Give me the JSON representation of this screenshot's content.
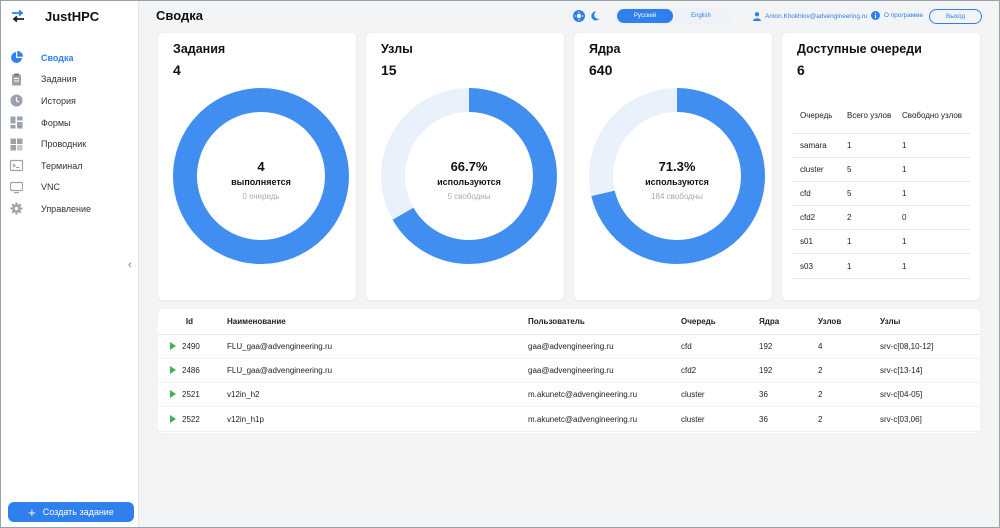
{
  "app": {
    "title": "JustHPC"
  },
  "sidebar": {
    "items": [
      {
        "label": "Сводка",
        "icon": "pie-chart-icon",
        "active": true
      },
      {
        "label": "Задания",
        "icon": "clipboard-icon"
      },
      {
        "label": "История",
        "icon": "history-icon"
      },
      {
        "label": "Формы",
        "icon": "forms-icon"
      },
      {
        "label": "Проводник",
        "icon": "explorer-icon"
      },
      {
        "label": "Терминал",
        "icon": "terminal-icon"
      },
      {
        "label": "VNC",
        "icon": "monitor-icon"
      },
      {
        "label": "Управление",
        "icon": "gear-icon"
      }
    ],
    "create_label": "Создать задание"
  },
  "header": {
    "title": "Сводка",
    "lang_ru": "Русский",
    "lang_en": "English",
    "user": "Anton.Khokhlov@advengineering.ru",
    "about": "О программе",
    "logout": "Выход"
  },
  "cards": {
    "jobs": {
      "title": "Задания",
      "count": "4",
      "center_value": "4",
      "center_label": "выполняется",
      "center_sub": "0 очередь",
      "fraction": 1.0
    },
    "nodes": {
      "title": "Узлы",
      "count": "15",
      "center_value": "66.7%",
      "center_label": "используются",
      "center_sub": "5 свободны",
      "fraction": 0.667
    },
    "cores": {
      "title": "Ядра",
      "count": "640",
      "center_value": "71.3%",
      "center_label": "используются",
      "center_sub": "184 свободны",
      "fraction": 0.713
    },
    "queues": {
      "title": "Доступные очереди",
      "count": "6",
      "headers": [
        "Очередь",
        "Всего узлов",
        "Свободно узлов"
      ],
      "rows": [
        [
          "samara",
          "1",
          "1"
        ],
        [
          "cluster",
          "5",
          "1"
        ],
        [
          "cfd",
          "5",
          "1"
        ],
        [
          "cfd2",
          "2",
          "0"
        ],
        [
          "s01",
          "1",
          "1"
        ],
        [
          "s03",
          "1",
          "1"
        ]
      ]
    }
  },
  "tasks": {
    "headers": [
      "Id",
      "Наименование",
      "Пользователь",
      "Очередь",
      "Ядра",
      "Узлов",
      "Узлы"
    ],
    "rows": [
      [
        "2490",
        "FLU_gaa@advengineering.ru",
        "gaa@advengineering.ru",
        "cfd",
        "192",
        "4",
        "srv-c[08,10-12]"
      ],
      [
        "2486",
        "FLU_gaa@advengineering.ru",
        "gaa@advengineering.ru",
        "cfd2",
        "192",
        "2",
        "srv-c[13-14]"
      ],
      [
        "2521",
        "v12in_h2",
        "m.akunetc@advengineering.ru",
        "cluster",
        "36",
        "2",
        "srv-c[04-05]"
      ],
      [
        "2522",
        "v12in_h1p",
        "m.akunetc@advengineering.ru",
        "cluster",
        "36",
        "2",
        "srv-c[03,06]"
      ]
    ]
  },
  "colors": {
    "accent": "#2f80ed",
    "track": "#e8f1fc",
    "play": "#3bb54a"
  }
}
